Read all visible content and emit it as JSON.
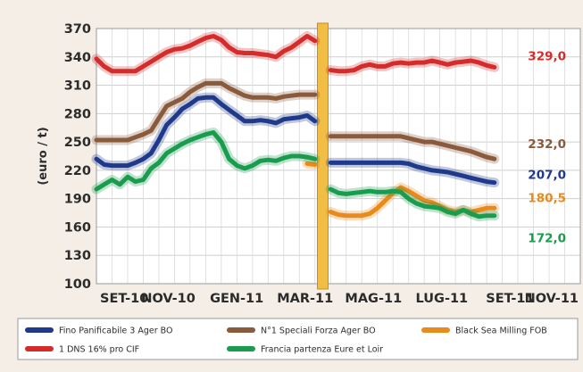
{
  "chart_data": {
    "type": "line",
    "ylabel": "(euro / t)",
    "ylim": [
      100,
      370
    ],
    "yticks": [
      370,
      340,
      310,
      280,
      250,
      220,
      190,
      160,
      130,
      100
    ],
    "xticks": [
      "SET-10",
      "NOV-10",
      "GEN-11",
      "MAR-11",
      "MAG-11",
      "LUG-11",
      "SET-11",
      "NOV-11"
    ],
    "grid": true,
    "legend_position": "bottom",
    "x_range": [
      0,
      62
    ],
    "break_x": 29,
    "series": [
      {
        "name": "Fino Panificabile 3 Ager BO",
        "color": "#1f3a8a",
        "points": [
          [
            0,
            232
          ],
          [
            1,
            226
          ],
          [
            2,
            225
          ],
          [
            3,
            225
          ],
          [
            4,
            225
          ],
          [
            5,
            228
          ],
          [
            6,
            232
          ],
          [
            7,
            238
          ],
          [
            8,
            252
          ],
          [
            9,
            268
          ],
          [
            10,
            276
          ],
          [
            11,
            285
          ],
          [
            12,
            290
          ],
          [
            13,
            296
          ],
          [
            14,
            297
          ],
          [
            15,
            297
          ],
          [
            16,
            290
          ],
          [
            17,
            284
          ],
          [
            18,
            278
          ],
          [
            19,
            272
          ],
          [
            20,
            272
          ],
          [
            21,
            273
          ],
          [
            22,
            272
          ],
          [
            23,
            270
          ],
          [
            24,
            274
          ],
          [
            25,
            275
          ],
          [
            26,
            276
          ],
          [
            27,
            278
          ],
          [
            28,
            272
          ],
          [
            30,
            228
          ],
          [
            31,
            228
          ],
          [
            32,
            228
          ],
          [
            33,
            228
          ],
          [
            34,
            228
          ],
          [
            35,
            228
          ],
          [
            36,
            228
          ],
          [
            37,
            228
          ],
          [
            38,
            228
          ],
          [
            39,
            228
          ],
          [
            40,
            227
          ],
          [
            41,
            224
          ],
          [
            42,
            222
          ],
          [
            43,
            220
          ],
          [
            44,
            219
          ],
          [
            45,
            218
          ],
          [
            46,
            216
          ],
          [
            47,
            214
          ],
          [
            48,
            212
          ],
          [
            49,
            210
          ],
          [
            50,
            208
          ],
          [
            51,
            207
          ]
        ],
        "end_label": "207,0"
      },
      {
        "name": "N°1 Speciali Forza Ager BO",
        "color": "#8a5a3c",
        "points": [
          [
            0,
            252
          ],
          [
            1,
            252
          ],
          [
            2,
            252
          ],
          [
            3,
            252
          ],
          [
            4,
            252
          ],
          [
            5,
            255
          ],
          [
            6,
            258
          ],
          [
            7,
            262
          ],
          [
            8,
            275
          ],
          [
            9,
            288
          ],
          [
            10,
            292
          ],
          [
            11,
            296
          ],
          [
            12,
            303
          ],
          [
            13,
            308
          ],
          [
            14,
            312
          ],
          [
            15,
            312
          ],
          [
            16,
            312
          ],
          [
            17,
            307
          ],
          [
            18,
            303
          ],
          [
            19,
            299
          ],
          [
            20,
            297
          ],
          [
            21,
            297
          ],
          [
            22,
            297
          ],
          [
            23,
            296
          ],
          [
            24,
            298
          ],
          [
            25,
            299
          ],
          [
            26,
            300
          ],
          [
            27,
            300
          ],
          [
            28,
            300
          ],
          [
            30,
            256
          ],
          [
            31,
            256
          ],
          [
            32,
            256
          ],
          [
            33,
            256
          ],
          [
            34,
            256
          ],
          [
            35,
            256
          ],
          [
            36,
            256
          ],
          [
            37,
            256
          ],
          [
            38,
            256
          ],
          [
            39,
            256
          ],
          [
            40,
            254
          ],
          [
            41,
            252
          ],
          [
            42,
            250
          ],
          [
            43,
            250
          ],
          [
            44,
            248
          ],
          [
            45,
            246
          ],
          [
            46,
            244
          ],
          [
            47,
            242
          ],
          [
            48,
            240
          ],
          [
            49,
            237
          ],
          [
            50,
            234
          ],
          [
            51,
            232
          ]
        ],
        "end_label": "232,0"
      },
      {
        "name": "Black Sea Milling FOB",
        "color": "#e88a1c",
        "points": [
          [
            27,
            227
          ],
          [
            28,
            226
          ],
          [
            30,
            176
          ],
          [
            31,
            173
          ],
          [
            32,
            172
          ],
          [
            33,
            172
          ],
          [
            34,
            172
          ],
          [
            35,
            174
          ],
          [
            36,
            180
          ],
          [
            37,
            188
          ],
          [
            38,
            196
          ],
          [
            39,
            202
          ],
          [
            40,
            198
          ],
          [
            41,
            193
          ],
          [
            42,
            188
          ],
          [
            43,
            186
          ],
          [
            44,
            182
          ],
          [
            45,
            178
          ],
          [
            46,
            176
          ],
          [
            47,
            178
          ],
          [
            48,
            176
          ],
          [
            49,
            178
          ],
          [
            50,
            180
          ],
          [
            51,
            180
          ]
        ],
        "end_label": "180,5"
      },
      {
        "name": "1 DNS 16% pro CIF",
        "color": "#d42b2b",
        "points": [
          [
            0,
            338
          ],
          [
            1,
            330
          ],
          [
            2,
            325
          ],
          [
            3,
            325
          ],
          [
            4,
            325
          ],
          [
            5,
            325
          ],
          [
            6,
            330
          ],
          [
            7,
            335
          ],
          [
            8,
            340
          ],
          [
            9,
            345
          ],
          [
            10,
            348
          ],
          [
            11,
            349
          ],
          [
            12,
            352
          ],
          [
            13,
            356
          ],
          [
            14,
            360
          ],
          [
            15,
            362
          ],
          [
            16,
            358
          ],
          [
            17,
            350
          ],
          [
            18,
            345
          ],
          [
            19,
            344
          ],
          [
            20,
            344
          ],
          [
            21,
            343
          ],
          [
            22,
            342
          ],
          [
            23,
            340
          ],
          [
            24,
            346
          ],
          [
            25,
            350
          ],
          [
            26,
            356
          ],
          [
            27,
            362
          ],
          [
            28,
            357
          ],
          [
            30,
            326
          ],
          [
            31,
            325
          ],
          [
            32,
            325
          ],
          [
            33,
            326
          ],
          [
            34,
            330
          ],
          [
            35,
            332
          ],
          [
            36,
            330
          ],
          [
            37,
            330
          ],
          [
            38,
            333
          ],
          [
            39,
            334
          ],
          [
            40,
            333
          ],
          [
            41,
            334
          ],
          [
            42,
            334
          ],
          [
            43,
            336
          ],
          [
            44,
            334
          ],
          [
            45,
            332
          ],
          [
            46,
            334
          ],
          [
            47,
            335
          ],
          [
            48,
            336
          ],
          [
            49,
            334
          ],
          [
            50,
            331
          ],
          [
            51,
            329
          ]
        ],
        "end_label": "329,0"
      },
      {
        "name": "Francia partenza Eure et Loir",
        "color": "#1a9c4e",
        "points": [
          [
            0,
            200
          ],
          [
            1,
            205
          ],
          [
            2,
            210
          ],
          [
            3,
            205
          ],
          [
            4,
            213
          ],
          [
            5,
            208
          ],
          [
            6,
            210
          ],
          [
            7,
            222
          ],
          [
            8,
            228
          ],
          [
            9,
            238
          ],
          [
            10,
            243
          ],
          [
            11,
            248
          ],
          [
            12,
            252
          ],
          [
            13,
            255
          ],
          [
            14,
            258
          ],
          [
            15,
            260
          ],
          [
            16,
            250
          ],
          [
            17,
            232
          ],
          [
            18,
            225
          ],
          [
            19,
            222
          ],
          [
            20,
            225
          ],
          [
            21,
            230
          ],
          [
            22,
            231
          ],
          [
            23,
            230
          ],
          [
            24,
            233
          ],
          [
            25,
            235
          ],
          [
            26,
            235
          ],
          [
            27,
            234
          ],
          [
            28,
            232
          ],
          [
            30,
            200
          ],
          [
            31,
            196
          ],
          [
            32,
            195
          ],
          [
            33,
            196
          ],
          [
            34,
            197
          ],
          [
            35,
            198
          ],
          [
            36,
            197
          ],
          [
            37,
            197
          ],
          [
            38,
            198
          ],
          [
            39,
            197
          ],
          [
            40,
            190
          ],
          [
            41,
            185
          ],
          [
            42,
            182
          ],
          [
            43,
            181
          ],
          [
            44,
            180
          ],
          [
            45,
            176
          ],
          [
            46,
            174
          ],
          [
            47,
            178
          ],
          [
            48,
            174
          ],
          [
            49,
            171
          ],
          [
            50,
            172
          ],
          [
            51,
            172
          ]
        ],
        "end_label": "172,0"
      }
    ]
  }
}
